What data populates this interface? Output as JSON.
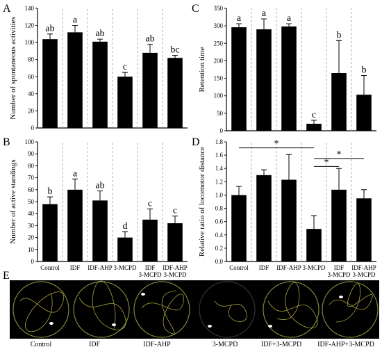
{
  "panels": {
    "A": "A",
    "B": "B",
    "C": "C",
    "D": "D",
    "E": "E"
  },
  "chart_data": [
    {
      "id": "A",
      "type": "bar",
      "categories": [
        "Control",
        "IDF",
        "IDF-AHP",
        "3-MCPD",
        "IDF 3-MCPD",
        "IDF-AHP 3-MCPD"
      ],
      "values": [
        104,
        112,
        101,
        60,
        88,
        82
      ],
      "errors": [
        6,
        8,
        3,
        5,
        10,
        3
      ],
      "letters": [
        "ab",
        "a",
        "ab",
        "c",
        "ab",
        "bc"
      ],
      "ylabel": "Number of spontaneous activities",
      "ylim": [
        0,
        140
      ],
      "yticks": [
        0,
        20,
        40,
        60,
        80,
        100,
        120,
        140
      ]
    },
    {
      "id": "B",
      "type": "bar",
      "categories": [
        "Control",
        "IDF",
        "IDF-AHP",
        "3-MCPD",
        "IDF 3-MCPD",
        "IDF-AHP 3-MCPD"
      ],
      "values": [
        48,
        60,
        51,
        20,
        35,
        32
      ],
      "errors": [
        6,
        9,
        8,
        5,
        9,
        6
      ],
      "letters": [
        "b",
        "a",
        "ab",
        "d",
        "c",
        "c"
      ],
      "ylabel": "Number of active standings",
      "ylim": [
        0,
        100
      ],
      "yticks": [
        0,
        10,
        20,
        30,
        40,
        50,
        60,
        70,
        80,
        90,
        100
      ]
    },
    {
      "id": "C",
      "type": "bar",
      "categories": [
        "Control",
        "IDF",
        "IDF-AHP",
        "3-MCPD",
        "IDF 3-MCPD",
        "IDF-AHP 3-MCPD"
      ],
      "values": [
        296,
        290,
        298,
        20,
        165,
        103
      ],
      "errors": [
        10,
        30,
        8,
        10,
        93,
        55
      ],
      "letters": [
        "a",
        "a",
        "a",
        "c",
        "b",
        "b"
      ],
      "ylabel": "Retention time",
      "ylim": [
        0,
        350
      ],
      "yticks": [
        0,
        50,
        100,
        150,
        200,
        250,
        300,
        350
      ]
    },
    {
      "id": "D",
      "type": "bar",
      "categories": [
        "Control",
        "IDF",
        "IDF-AHP",
        "3-MCPD",
        "IDF 3-MCPD",
        "IDF-AHP 3-MCPD"
      ],
      "values": [
        1.0,
        1.3,
        1.23,
        0.49,
        1.08,
        0.95
      ],
      "errors": [
        0.13,
        0.08,
        0.38,
        0.2,
        0.32,
        0.13
      ],
      "letters": [
        "",
        "",
        "",
        "",
        "",
        ""
      ],
      "ylabel": "Relative ratio of locomotor distance",
      "ylim": [
        0,
        1.8
      ],
      "yticks": [
        "0.0",
        "0.2",
        "0.4",
        "0.6",
        "0.8",
        "1.0",
        "1.2",
        "1.4",
        "1.6",
        "1.8"
      ],
      "significance": [
        {
          "from": 0,
          "to": 3,
          "y": 1.71,
          "label": "*"
        },
        {
          "from": 3,
          "to": 4,
          "y": 1.43,
          "label": "*"
        },
        {
          "from": 3,
          "to": 5,
          "y": 1.55,
          "label": "*"
        }
      ]
    }
  ],
  "track_labels": [
    "Control",
    "IDF",
    "IDF-AHP",
    "3-MCPD",
    "IDF+3-MCPD",
    "IDF-AHP+3-MCPD"
  ]
}
